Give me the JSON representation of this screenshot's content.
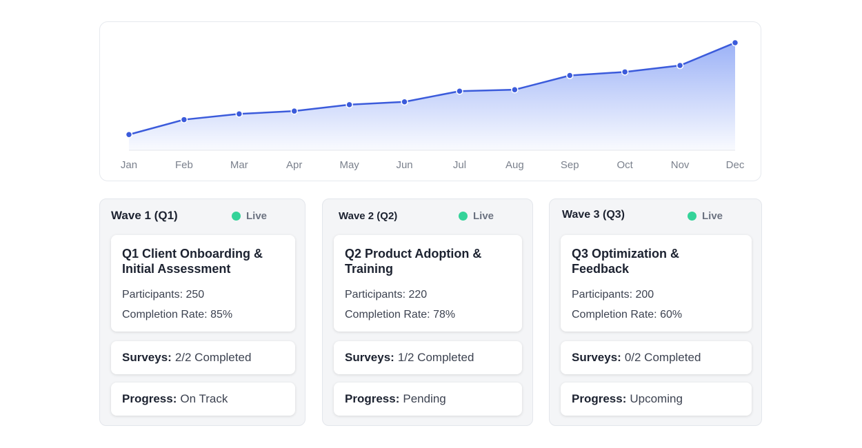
{
  "chart_data": {
    "type": "area",
    "categories": [
      "Jan",
      "Feb",
      "Mar",
      "Apr",
      "May",
      "Jun",
      "Jul",
      "Aug",
      "Sep",
      "Oct",
      "Nov",
      "Dec"
    ],
    "values": [
      22,
      43,
      51,
      55,
      64,
      68,
      83,
      85,
      105,
      110,
      119,
      151
    ],
    "ylim": [
      0,
      180
    ],
    "grid": false,
    "line_color": "#3b5bdb",
    "fill_color": "#8aa4f5"
  },
  "waves": [
    {
      "title": "Wave 1 (Q1)",
      "status": "Live",
      "card_title_line1": "Q1 Client Onboarding &",
      "card_title_line2": "Initial Assessment",
      "participants": "Participants: 250",
      "completion": "Completion Rate: 85%",
      "surveys_label": "Surveys:",
      "surveys_value": "2/2 Completed",
      "progress_label": "Progress:",
      "progress_value": "On Track"
    },
    {
      "title": "Wave 2 (Q2)",
      "status": "Live",
      "card_title_line1": "Q2 Product Adoption &",
      "card_title_line2": "Training",
      "participants": "Participants: 220",
      "completion": "Completion Rate: 78%",
      "surveys_label": "Surveys:",
      "surveys_value": "1/2 Completed",
      "progress_label": "Progress:",
      "progress_value": "Pending"
    },
    {
      "title": "Wave 3 (Q3)",
      "status": "Live",
      "card_title_line1": "Q3 Optimization &",
      "card_title_line2": "Feedback",
      "participants": "Participants: 200",
      "completion": "Completion Rate: 60%",
      "surveys_label": "Surveys:",
      "surveys_value": "0/2 Completed",
      "progress_label": "Progress:",
      "progress_value": "Upcoming"
    }
  ],
  "colors": {
    "live_dot": "#34d399"
  }
}
